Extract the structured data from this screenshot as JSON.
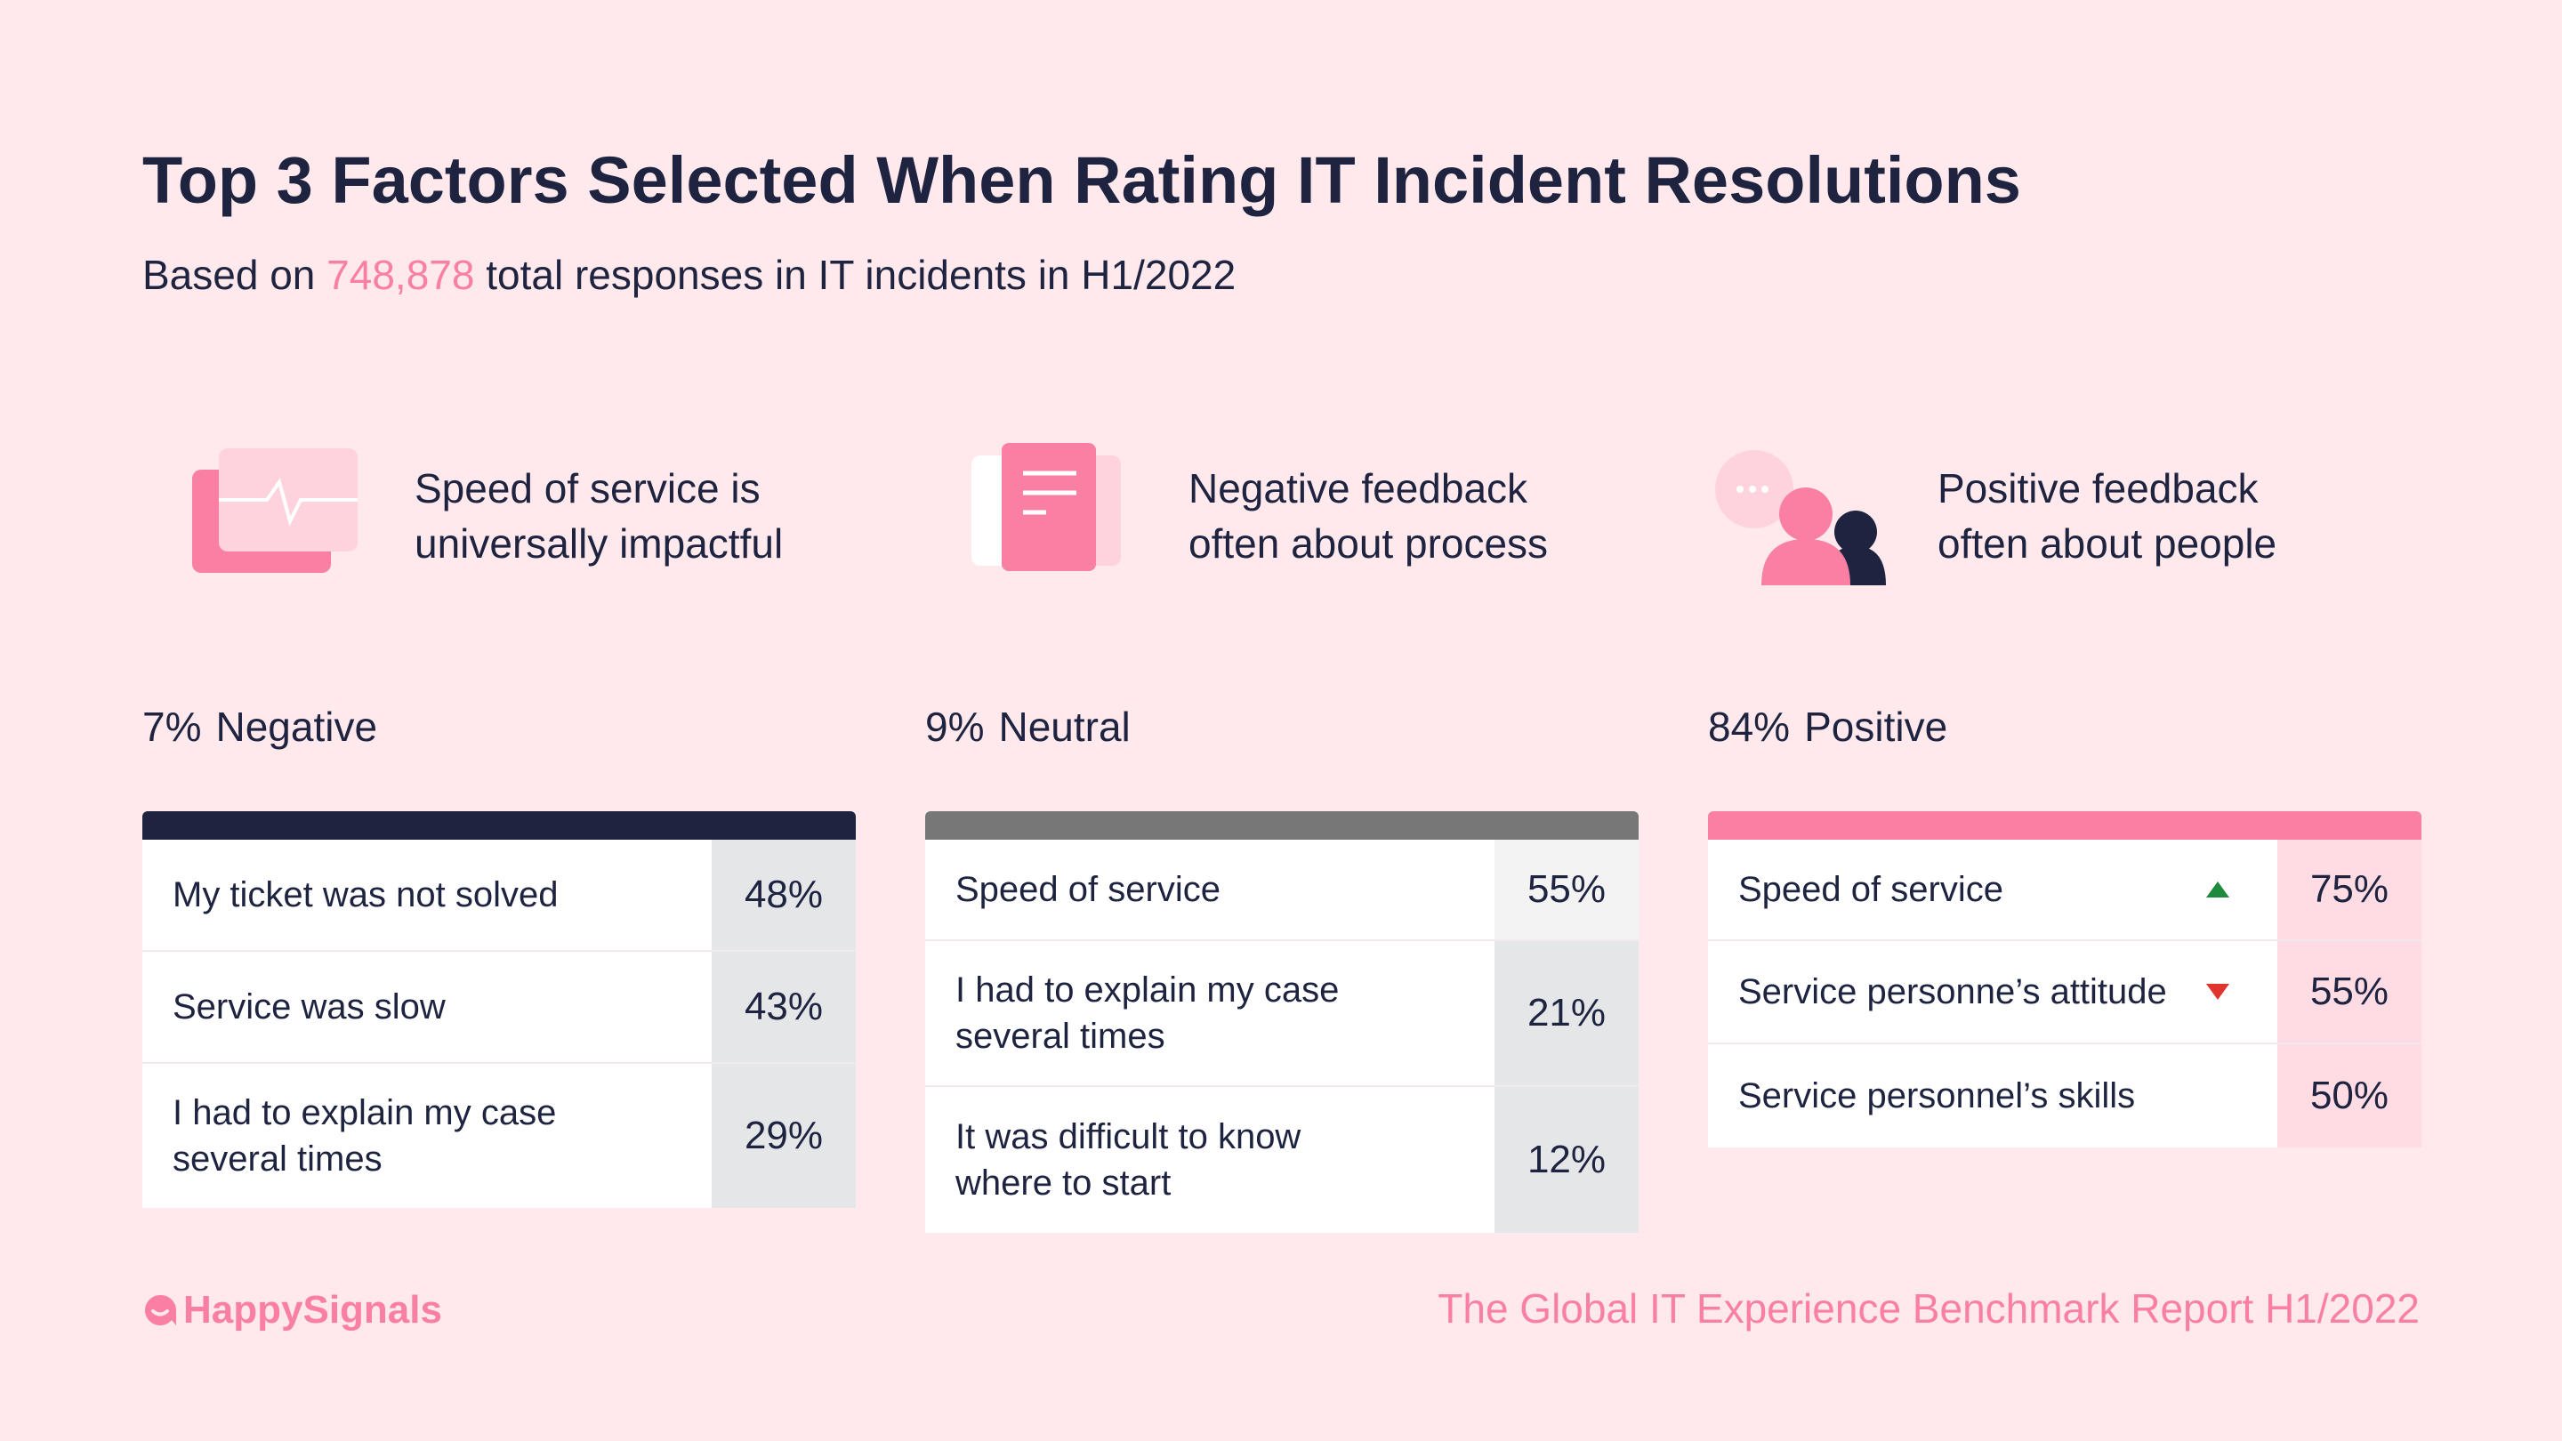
{
  "title": "Top 3 Factors Selected When Rating IT Incident Resolutions",
  "subtitle": {
    "prefix": "Based on ",
    "highlight": "748,878",
    "suffix": " total responses in IT incidents in H1/2022"
  },
  "features": [
    {
      "icon": "speed-monitor-icon",
      "line1": "Speed of service is",
      "line2": "universally impactful"
    },
    {
      "icon": "document-icon",
      "line1": "Negative feedback",
      "line2": "often about process"
    },
    {
      "icon": "people-chat-icon",
      "line1": "Positive feedback",
      "line2": "often about people"
    }
  ],
  "columns": [
    {
      "pct": "7%",
      "label": "Negative",
      "bar_color": "#1e2340",
      "rows": [
        {
          "label": "My ticket was not solved",
          "value": "48%"
        },
        {
          "label": "Service was slow",
          "value": "43%"
        },
        {
          "label": "I had to explain my case several times",
          "value": "29%"
        }
      ]
    },
    {
      "pct": "9%",
      "label": "Neutral",
      "bar_color": "#777777",
      "rows": [
        {
          "label": "Speed of service",
          "value": "55%"
        },
        {
          "label": "I had to explain my case several times",
          "value": "21%"
        },
        {
          "label": "It was difficult to know where to start",
          "value": "12%"
        }
      ]
    },
    {
      "pct": "84%",
      "label": "Positive",
      "bar_color": "#f97fa3",
      "rows": [
        {
          "label": "Speed of service",
          "value": "75%",
          "trend": "up"
        },
        {
          "label": "Service personne’s attitude",
          "value": "55%",
          "trend": "down"
        },
        {
          "label": "Service personnel’s skills",
          "value": "50%"
        }
      ]
    }
  ],
  "footer": {
    "logo": "HappySignals",
    "report": "The Global IT Experience Benchmark Report H1/2022"
  },
  "colors": {
    "background": "#ffe9ec",
    "accent": "#f97fa3",
    "navy": "#1e2340",
    "trend_up": "#1e8a3c",
    "trend_down": "#e0342e"
  }
}
